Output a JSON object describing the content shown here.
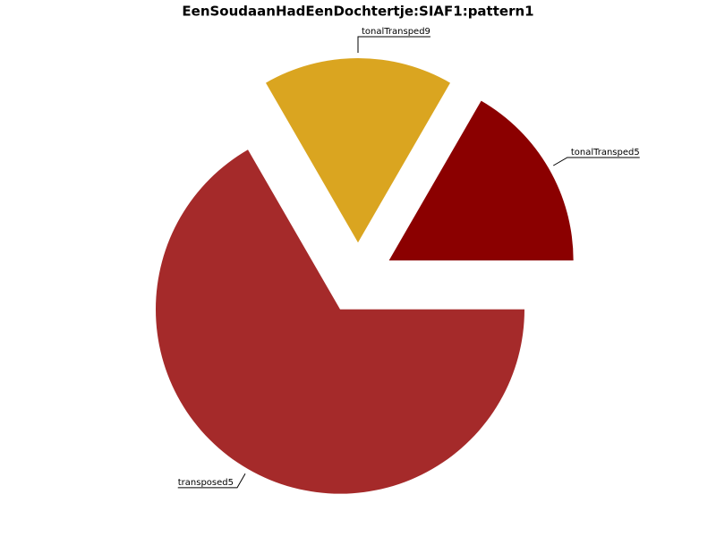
{
  "chart_data": {
    "type": "pie",
    "title": "EenSoudaanHadEenDochtertje:SIAF1:pattern1",
    "categories": [
      "tonalTransped5",
      "tonalTransped9",
      "transposed5"
    ],
    "values": [
      1,
      1,
      4
    ],
    "colors": [
      "#8b0000",
      "#daa520",
      "#a52a2a"
    ],
    "start_angle": 0,
    "explode": true
  }
}
